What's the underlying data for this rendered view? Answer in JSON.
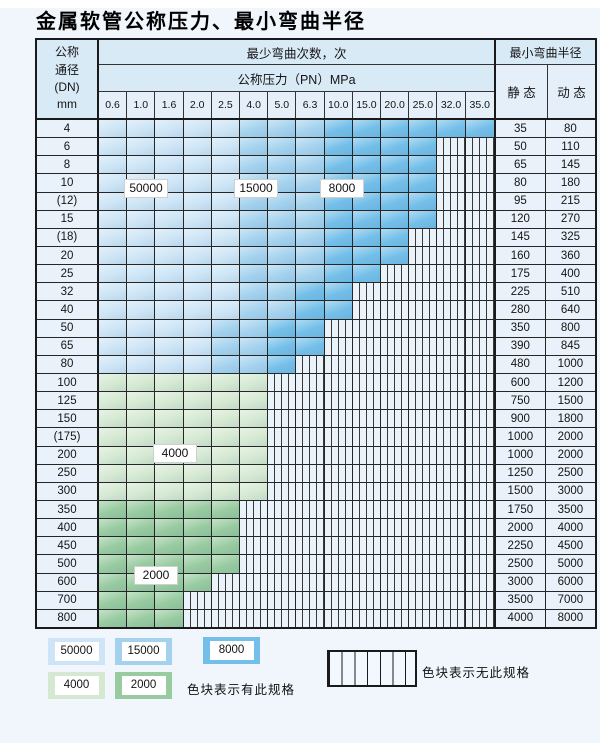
{
  "title": "金属软管公称压力、最小弯曲半径",
  "colors": {
    "light_blue": "#cde5f6",
    "medium_blue": "#a4d2ee",
    "dark_blue": "#74bfe9",
    "light_green": "#d5e9d2",
    "medium_green": "#98cba0",
    "hatch_bg": "#ebf3fa",
    "header_bg": "#d9eaf7",
    "header_bg2": "#e4eff9",
    "label_col_bg": "#e9f2fb"
  },
  "table": {
    "header": {
      "dn_lines": [
        "公称",
        "通径",
        "(DN)",
        "mm"
      ],
      "bend_cycles": "最少弯曲次数，次",
      "pressure": "公称压力（PN）MPa",
      "radius": "最小弯曲半径",
      "static": "静 态",
      "dynamic": "动 态",
      "pressure_cols": [
        "0.6",
        "1.0",
        "1.6",
        "2.0",
        "2.5",
        "4.0",
        "5.0",
        "6.3",
        "10.0",
        "15.0",
        "20.0",
        "25.0",
        "32.0",
        "35.0"
      ]
    },
    "zone_legend": {
      "L": "50000",
      "M": "15000",
      "D": "8000",
      "G": "4000",
      "E": "2000",
      "X": "no-spec-hatch"
    },
    "rows": [
      {
        "dn": "4",
        "cells": "LLLLLMMMDDDDDD",
        "static": "35",
        "dynamic": "80"
      },
      {
        "dn": "6",
        "cells": "LLLLLMMMDDDDXX",
        "static": "50",
        "dynamic": "110"
      },
      {
        "dn": "8",
        "cells": "LLLLLMMMDDDDXX",
        "static": "65",
        "dynamic": "145"
      },
      {
        "dn": "10",
        "cells": "LLLLLMMMDDDDXX",
        "static": "80",
        "dynamic": "180"
      },
      {
        "dn": "(12)",
        "cells": "LLLLLMMMDDDDXX",
        "static": "95",
        "dynamic": "215"
      },
      {
        "dn": "15",
        "cells": "LLLLLMMMDDDDXX",
        "static": "120",
        "dynamic": "270"
      },
      {
        "dn": "(18)",
        "cells": "LLLLLMMMDDDXXX",
        "static": "145",
        "dynamic": "325"
      },
      {
        "dn": "20",
        "cells": "LLLLLMMMDDDXXX",
        "static": "160",
        "dynamic": "360"
      },
      {
        "dn": "25",
        "cells": "LLLLLMMMDDXXXX",
        "static": "175",
        "dynamic": "400"
      },
      {
        "dn": "32",
        "cells": "LLLLLMMDDXXXXX",
        "static": "225",
        "dynamic": "510"
      },
      {
        "dn": "40",
        "cells": "LLLLLMMDDXXXXX",
        "static": "280",
        "dynamic": "640"
      },
      {
        "dn": "50",
        "cells": "LLLLMMDDXXXXXX",
        "static": "350",
        "dynamic": "800"
      },
      {
        "dn": "65",
        "cells": "LLLLMMDDXXXXXX",
        "static": "390",
        "dynamic": "845"
      },
      {
        "dn": "80",
        "cells": "LLLLMMDXXXXXXX",
        "static": "480",
        "dynamic": "1000"
      },
      {
        "dn": "100",
        "cells": "GGGGGGXXXXXXXX",
        "static": "600",
        "dynamic": "1200"
      },
      {
        "dn": "125",
        "cells": "GGGGGGXXXXXXXX",
        "static": "750",
        "dynamic": "1500"
      },
      {
        "dn": "150",
        "cells": "GGGGGGXXXXXXXX",
        "static": "900",
        "dynamic": "1800"
      },
      {
        "dn": "(175)",
        "cells": "GGGGGGXXXXXXXX",
        "static": "1000",
        "dynamic": "2000"
      },
      {
        "dn": "200",
        "cells": "GGGGGGXXXXXXXX",
        "static": "1000",
        "dynamic": "2000"
      },
      {
        "dn": "250",
        "cells": "GGGGGGXXXXXXXX",
        "static": "1250",
        "dynamic": "2500"
      },
      {
        "dn": "300",
        "cells": "GGGGGGXXXXXXXX",
        "static": "1500",
        "dynamic": "3000"
      },
      {
        "dn": "350",
        "cells": "EEEEEXXXXXXXXX",
        "static": "1750",
        "dynamic": "3500"
      },
      {
        "dn": "400",
        "cells": "EEEEEXXXXXXXXX",
        "static": "2000",
        "dynamic": "4000"
      },
      {
        "dn": "450",
        "cells": "EEEEEXXXXXXXXX",
        "static": "2250",
        "dynamic": "4500"
      },
      {
        "dn": "500",
        "cells": "EEEEEXXXXXXXXX",
        "static": "2500",
        "dynamic": "5000"
      },
      {
        "dn": "600",
        "cells": "EEEEXXXXXXXXXX",
        "static": "3000",
        "dynamic": "6000"
      },
      {
        "dn": "700",
        "cells": "EEEXXXXXXXXXXX",
        "static": "3500",
        "dynamic": "7000"
      },
      {
        "dn": "800",
        "cells": "EEEXXXXXXXXXXX",
        "static": "4000",
        "dynamic": "8000"
      }
    ],
    "overlays": [
      {
        "label": "50000"
      },
      {
        "label": "15000"
      },
      {
        "label": "8000"
      },
      {
        "label": "4000"
      },
      {
        "label": "2000"
      }
    ]
  },
  "legend": {
    "items": [
      {
        "label": "50000",
        "color": "light_blue"
      },
      {
        "label": "15000",
        "color": "medium_blue"
      },
      {
        "label": "8000",
        "color": "dark_blue"
      },
      {
        "label": "4000",
        "color": "light_green"
      },
      {
        "label": "2000",
        "color": "medium_green"
      }
    ],
    "has_spec_text": "色块表示有此规格",
    "no_spec_text": "色块表示无此规格"
  }
}
